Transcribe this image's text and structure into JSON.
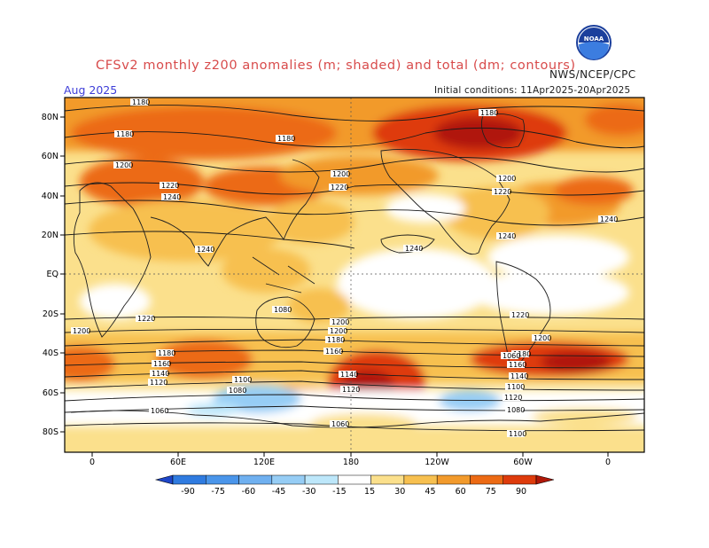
{
  "title": "CFSv2 monthly z200 anomalies (m; shaded) and total (dm; contours)",
  "agency": "NWS/NCEP/CPC",
  "month": "Aug 2025",
  "initial_conditions": "Initial conditions: 11Apr2025-20Apr2025",
  "logo_text": "NOAA",
  "lat_labels": [
    "80N",
    "60N",
    "40N",
    "20N",
    "EQ",
    "20S",
    "40S",
    "60S",
    "80S"
  ],
  "lon_labels": [
    "0",
    "60E",
    "120E",
    "180",
    "120W",
    "60W",
    "0"
  ],
  "colorbar": {
    "ticks": [
      "-90",
      "-75",
      "-60",
      "-45",
      "-30",
      "-15",
      "15",
      "30",
      "45",
      "60",
      "75",
      "90"
    ],
    "colors": [
      "#1e46c8",
      "#2f7be0",
      "#4a95ea",
      "#6fb0f0",
      "#96cdf5",
      "#bde7fa",
      "#ffffff",
      "#fbe08c",
      "#f7c050",
      "#f29a2c",
      "#ec6a14",
      "#de3b0c",
      "#b01808"
    ]
  },
  "contour_labels": [
    "1180",
    "1180",
    "1180",
    "1200",
    "1220",
    "1240",
    "1240",
    "1180",
    "1200",
    "1220",
    "1240",
    "1220",
    "1240",
    "1200",
    "1240",
    "1220",
    "1200",
    "1220",
    "1200",
    "1180",
    "1160",
    "1140",
    "1120",
    "1100",
    "1080",
    "1060",
    "1200",
    "1180",
    "1160",
    "1140",
    "1120",
    "1100",
    "1080",
    "1060",
    "1200",
    "1180",
    "1160",
    "1140",
    "1120",
    "1100",
    "1080",
    "1060"
  ]
}
